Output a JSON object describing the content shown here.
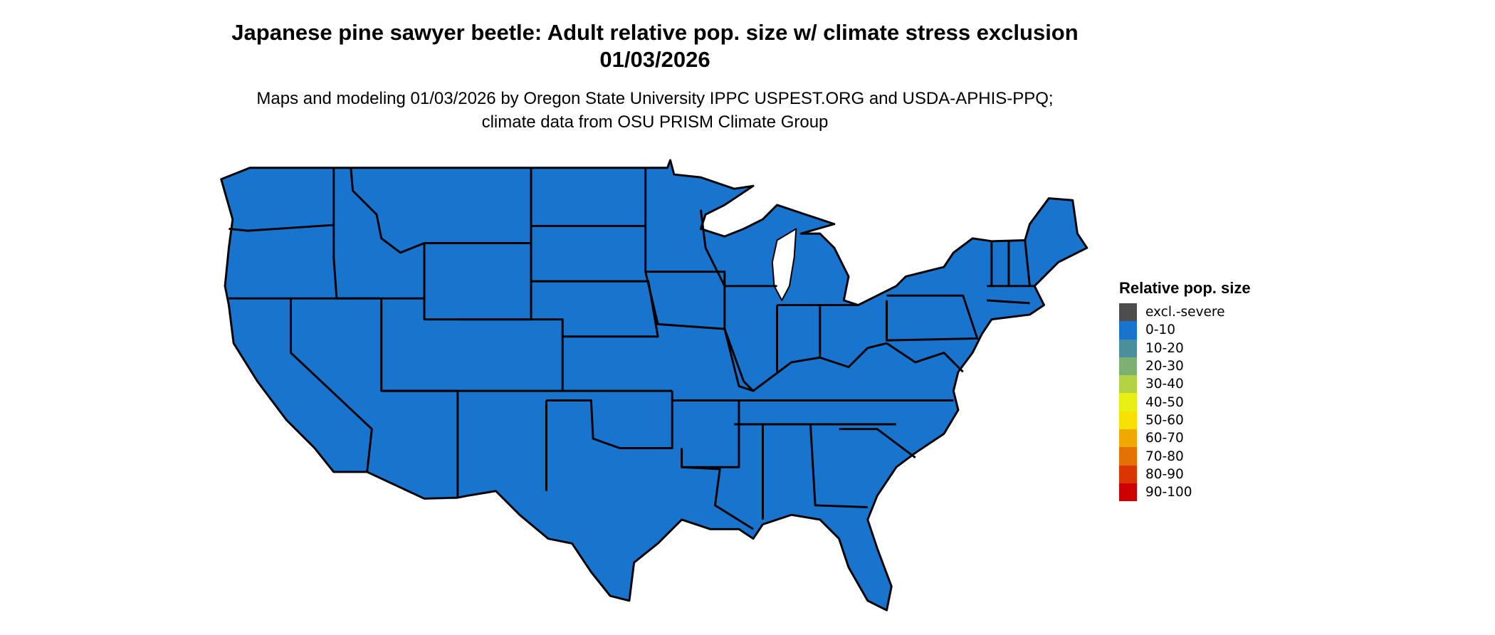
{
  "title": "Japanese pine sawyer beetle: Adult relative pop. size w/ climate stress exclusion 01/03/2026",
  "subtitle": "Maps and modeling 01/03/2026 by Oregon State University IPPC USPEST.ORG and USDA-APHIS-PPQ; climate data from OSU PRISM Climate Group",
  "map": {
    "region": "Contiguous United States",
    "fill_color": "#1874cd",
    "fill_category": "0-10",
    "border_color": "#000000"
  },
  "legend": {
    "title": "Relative pop. size",
    "items": [
      {
        "label": "excl.-severe",
        "color": "#4d4d4d"
      },
      {
        "label": "0-10",
        "color": "#1874cd"
      },
      {
        "label": "10-20",
        "color": "#4a8f9b"
      },
      {
        "label": "20-30",
        "color": "#7db073"
      },
      {
        "label": "30-40",
        "color": "#b3d244"
      },
      {
        "label": "40-50",
        "color": "#e6f014"
      },
      {
        "label": "50-60",
        "color": "#f8e100"
      },
      {
        "label": "60-70",
        "color": "#efaa00"
      },
      {
        "label": "70-80",
        "color": "#e37200"
      },
      {
        "label": "80-90",
        "color": "#db3600"
      },
      {
        "label": "90-100",
        "color": "#cc0000"
      }
    ]
  }
}
